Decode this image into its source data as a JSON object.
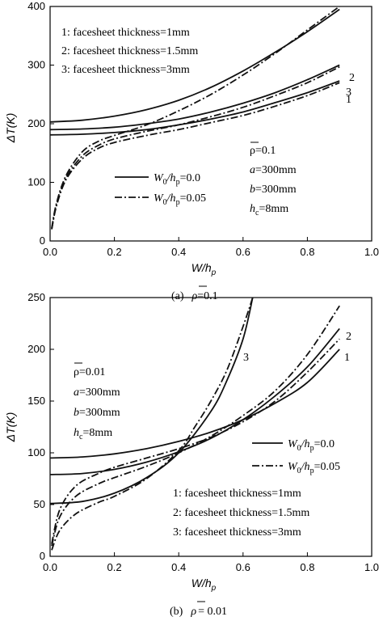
{
  "chart_data": [
    {
      "type": "line",
      "caption": "(a)",
      "caption_value": "=0.1",
      "xlabel_main": "W/h",
      "xlabel_sub": "p",
      "ylabel": "ΔT(K)",
      "xlim": [
        0.0,
        1.0
      ],
      "ylim": [
        0,
        400
      ],
      "xticks": [
        "0.0",
        "0.2",
        "0.4",
        "0.6",
        "0.8",
        "1.0"
      ],
      "yticks": [
        "0",
        "100",
        "200",
        "300",
        "400"
      ],
      "legend_thickness": [
        "1: facesheet thickness=1mm",
        "2: facesheet thickness=1.5mm",
        "3: facesheet thickness=3mm"
      ],
      "legend_imperfection": [
        {
          "label_w0": "W",
          "label_w0_sub": "0",
          "label_hp": "/h",
          "label_hp_sub": "p",
          "label_val": "=0.0",
          "style": "solid"
        },
        {
          "label_w0": "W",
          "label_w0_sub": "0",
          "label_hp": "/h",
          "label_hp_sub": "p",
          "label_val": "=0.05",
          "style": "dashdot"
        }
      ],
      "params": {
        "rho": "ρ=0.1",
        "a": "=300mm",
        "b": "=300mm",
        "hc": "=8mm"
      },
      "curve_labels": [
        "1",
        "2",
        "3"
      ],
      "series": [
        {
          "name": "1",
          "style": "solid",
          "x": [
            0,
            0.1,
            0.2,
            0.3,
            0.4,
            0.5,
            0.6,
            0.7,
            0.8,
            0.9
          ],
          "y": [
            181,
            182,
            185,
            190,
            198,
            208,
            220,
            236,
            253,
            273
          ]
        },
        {
          "name": "2",
          "style": "solid",
          "x": [
            0,
            0.1,
            0.2,
            0.3,
            0.4,
            0.5,
            0.6,
            0.7,
            0.8,
            0.9
          ],
          "y": [
            190,
            191,
            194,
            200,
            208,
            220,
            235,
            253,
            275,
            300
          ]
        },
        {
          "name": "3",
          "style": "solid",
          "x": [
            0,
            0.1,
            0.2,
            0.3,
            0.4,
            0.5,
            0.6,
            0.7,
            0.8,
            0.9
          ],
          "y": [
            203,
            206,
            213,
            224,
            240,
            262,
            290,
            322,
            357,
            395
          ]
        },
        {
          "name": "1",
          "style": "dashdot",
          "x": [
            0.005,
            0.02,
            0.05,
            0.1,
            0.15,
            0.2,
            0.3,
            0.4,
            0.5,
            0.6,
            0.7,
            0.8,
            0.9
          ],
          "y": [
            20,
            60,
            105,
            140,
            158,
            168,
            180,
            190,
            202,
            214,
            230,
            248,
            270
          ]
        },
        {
          "name": "2",
          "style": "dashdot",
          "x": [
            0.005,
            0.02,
            0.05,
            0.1,
            0.15,
            0.2,
            0.3,
            0.4,
            0.5,
            0.6,
            0.7,
            0.8,
            0.9
          ],
          "y": [
            20,
            62,
            108,
            145,
            163,
            174,
            187,
            198,
            212,
            228,
            248,
            270,
            297
          ]
        },
        {
          "name": "3",
          "style": "dashdot",
          "x": [
            0.005,
            0.02,
            0.05,
            0.1,
            0.15,
            0.2,
            0.3,
            0.4,
            0.5,
            0.6,
            0.7,
            0.8,
            0.9
          ],
          "y": [
            22,
            65,
            112,
            152,
            170,
            180,
            198,
            222,
            250,
            283,
            320,
            360,
            400
          ]
        }
      ]
    },
    {
      "type": "line",
      "caption": "(b)",
      "caption_value": "= 0.01",
      "xlabel_main": "W/h",
      "xlabel_sub": "p",
      "ylabel": "ΔT(K)",
      "xlim": [
        0.0,
        1.0
      ],
      "ylim": [
        0,
        250
      ],
      "xticks": [
        "0.0",
        "0.2",
        "0.4",
        "0.6",
        "0.8",
        "1.0"
      ],
      "yticks": [
        "0",
        "50",
        "100",
        "150",
        "200",
        "250"
      ],
      "legend_thickness": [
        "1: facesheet thickness=1mm",
        "2: facesheet thickness=1.5mm",
        "3: facesheet thickness=3mm"
      ],
      "legend_imperfection": [
        {
          "label_w0": "W",
          "label_w0_sub": "0",
          "label_hp": "/h",
          "label_hp_sub": "p",
          "label_val": "=0.0",
          "style": "solid"
        },
        {
          "label_w0": "W",
          "label_w0_sub": "0",
          "label_hp": "/h",
          "label_hp_sub": "p",
          "label_val": "=0.05",
          "style": "dashdot"
        }
      ],
      "params": {
        "rho": "ρ=0.01",
        "a": "=300mm",
        "b": "=300mm",
        "hc": "=8mm"
      },
      "curve_labels": [
        "1",
        "2",
        "3"
      ],
      "series": [
        {
          "name": "1",
          "style": "solid",
          "x": [
            0,
            0.1,
            0.2,
            0.3,
            0.4,
            0.5,
            0.6,
            0.7,
            0.8,
            0.9
          ],
          "y": [
            95,
            96,
            99,
            104,
            111,
            120,
            132,
            148,
            168,
            200
          ]
        },
        {
          "name": "2",
          "style": "solid",
          "x": [
            0,
            0.1,
            0.2,
            0.3,
            0.4,
            0.5,
            0.6,
            0.7,
            0.8,
            0.9
          ],
          "y": [
            79,
            80,
            84,
            91,
            101,
            114,
            132,
            155,
            183,
            220
          ]
        },
        {
          "name": "3",
          "style": "solid",
          "x": [
            0,
            0.1,
            0.2,
            0.3,
            0.4,
            0.5,
            0.55,
            0.6,
            0.63
          ],
          "y": [
            51,
            53,
            61,
            76,
            100,
            140,
            170,
            210,
            250
          ]
        },
        {
          "name": "1",
          "style": "dashdot",
          "x": [
            0.005,
            0.03,
            0.08,
            0.15,
            0.2,
            0.3,
            0.4,
            0.5,
            0.6,
            0.7,
            0.8,
            0.9
          ],
          "y": [
            12,
            45,
            68,
            80,
            86,
            95,
            104,
            115,
            130,
            150,
            178,
            210
          ]
        },
        {
          "name": "2",
          "style": "dashdot",
          "x": [
            0.005,
            0.03,
            0.08,
            0.15,
            0.2,
            0.3,
            0.4,
            0.5,
            0.6,
            0.7,
            0.8,
            0.9
          ],
          "y": [
            10,
            38,
            58,
            70,
            76,
            87,
            100,
            116,
            136,
            160,
            195,
            242
          ]
        },
        {
          "name": "3",
          "style": "dashdot",
          "x": [
            0.005,
            0.03,
            0.08,
            0.15,
            0.2,
            0.3,
            0.4,
            0.45,
            0.5,
            0.55,
            0.6,
            0.63
          ],
          "y": [
            6,
            25,
            41,
            52,
            58,
            75,
            102,
            125,
            150,
            180,
            222,
            250
          ]
        }
      ]
    }
  ]
}
